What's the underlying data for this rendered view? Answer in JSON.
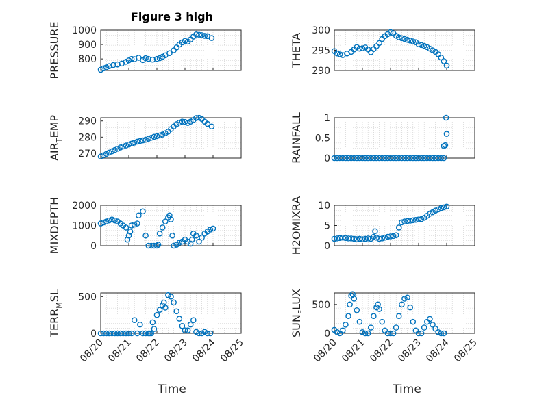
{
  "figure": {
    "title": "Figure 3 high",
    "x_label": "Time",
    "x_tick_labels": [
      "08/20",
      "08/21",
      "08/22",
      "08/23",
      "08/24",
      "08/25"
    ]
  },
  "colors": {
    "marker": "#0072BD",
    "axis": "#262626",
    "grid": "#c8c8c8"
  },
  "chart_data": [
    {
      "type": "scatter",
      "title": "Figure 3 high",
      "ylabel": "PRESSURE",
      "xlabel": "",
      "xlim": [
        0,
        5
      ],
      "ylim": [
        720,
        1000
      ],
      "yticks": [
        800,
        900,
        1000
      ],
      "grid": true,
      "x": [
        0.0,
        0.1,
        0.2,
        0.3,
        0.45,
        0.6,
        0.75,
        0.9,
        1.0,
        1.1,
        1.2,
        1.35,
        1.5,
        1.6,
        1.7,
        1.85,
        2.0,
        2.1,
        2.2,
        2.3,
        2.45,
        2.6,
        2.7,
        2.8,
        2.9,
        3.0,
        3.1,
        3.2,
        3.3,
        3.4,
        3.5,
        3.6,
        3.7,
        3.8,
        3.95
      ],
      "values": [
        725,
        735,
        742,
        750,
        758,
        762,
        768,
        780,
        790,
        800,
        798,
        808,
        792,
        805,
        800,
        795,
        800,
        805,
        815,
        825,
        840,
        860,
        880,
        900,
        915,
        925,
        920,
        935,
        955,
        970,
        968,
        965,
        960,
        958,
        945
      ]
    },
    {
      "type": "scatter",
      "ylabel": "THETA",
      "xlim": [
        0,
        5
      ],
      "ylim": [
        290,
        300
      ],
      "yticks": [
        290,
        295,
        300
      ],
      "grid": true,
      "x": [
        0.0,
        0.1,
        0.2,
        0.3,
        0.45,
        0.6,
        0.7,
        0.8,
        0.9,
        1.0,
        1.1,
        1.2,
        1.3,
        1.4,
        1.5,
        1.6,
        1.7,
        1.8,
        1.9,
        2.0,
        2.1,
        2.2,
        2.3,
        2.4,
        2.5,
        2.6,
        2.7,
        2.8,
        2.9,
        3.0,
        3.1,
        3.2,
        3.3,
        3.4,
        3.5,
        3.6,
        3.7,
        3.8,
        3.9,
        4.0
      ],
      "values": [
        294.8,
        294.2,
        294.0,
        293.8,
        294.2,
        294.6,
        295.2,
        295.8,
        295.4,
        295.5,
        295.7,
        295.2,
        294.5,
        295.3,
        296.0,
        296.8,
        297.8,
        298.5,
        299.0,
        299.5,
        299.2,
        298.6,
        298.2,
        298.0,
        297.8,
        297.6,
        297.4,
        297.2,
        297.0,
        296.5,
        296.3,
        296.1,
        295.8,
        295.4,
        295.0,
        294.6,
        294.0,
        293.2,
        292.3,
        291.2
      ]
    },
    {
      "type": "scatter",
      "ylabel": "AIR",
      "ylabel_sub": "T",
      "ylabel_tail": "EMP",
      "xlim": [
        0,
        5
      ],
      "ylim": [
        267,
        292
      ],
      "yticks": [
        270,
        280,
        290
      ],
      "grid": true,
      "x": [
        0.0,
        0.1,
        0.2,
        0.3,
        0.4,
        0.5,
        0.6,
        0.7,
        0.8,
        0.9,
        1.0,
        1.1,
        1.2,
        1.3,
        1.4,
        1.5,
        1.6,
        1.7,
        1.8,
        1.9,
        2.0,
        2.1,
        2.2,
        2.3,
        2.4,
        2.5,
        2.6,
        2.7,
        2.8,
        2.9,
        3.0,
        3.1,
        3.2,
        3.3,
        3.4,
        3.5,
        3.6,
        3.7,
        3.8,
        3.95
      ],
      "values": [
        268,
        268.8,
        269.6,
        270.4,
        271.2,
        272,
        272.8,
        273.6,
        274.2,
        274.8,
        275.4,
        276,
        276.6,
        277.2,
        277.6,
        278,
        278.4,
        279,
        279.6,
        280.2,
        280.6,
        281,
        281.6,
        282.4,
        283.4,
        285,
        286.6,
        288,
        289,
        289.6,
        289.4,
        288.8,
        289.6,
        290.6,
        291.8,
        292,
        291.2,
        289.6,
        288.2,
        286.6
      ]
    },
    {
      "type": "scatter",
      "ylabel": "RAINFALL",
      "xlim": [
        0,
        5
      ],
      "ylim": [
        0,
        1
      ],
      "yticks": [
        0,
        0.5,
        1
      ],
      "ytick_labels": [
        "0",
        "0.5",
        "1"
      ],
      "grid": true,
      "x": [
        0.0,
        0.1,
        0.2,
        0.3,
        0.4,
        0.5,
        0.6,
        0.7,
        0.8,
        0.9,
        1.0,
        1.1,
        1.2,
        1.3,
        1.4,
        1.5,
        1.6,
        1.7,
        1.8,
        1.9,
        2.0,
        2.1,
        2.2,
        2.3,
        2.4,
        2.5,
        2.6,
        2.7,
        2.8,
        2.9,
        3.0,
        3.1,
        3.2,
        3.3,
        3.4,
        3.5,
        3.6,
        3.7,
        3.8,
        3.9,
        3.9,
        3.95,
        3.98,
        4.0
      ],
      "values": [
        0,
        0,
        0,
        0,
        0,
        0,
        0,
        0,
        0,
        0,
        0,
        0,
        0,
        0,
        0,
        0,
        0,
        0,
        0,
        0,
        0,
        0,
        0,
        0,
        0,
        0,
        0,
        0,
        0,
        0,
        0,
        0,
        0,
        0,
        0,
        0,
        0,
        0,
        0,
        0,
        0.3,
        0.32,
        1.0,
        0.6
      ]
    },
    {
      "type": "scatter",
      "ylabel": "MIXDEPTH",
      "xlim": [
        0,
        5
      ],
      "ylim": [
        0,
        2000
      ],
      "yticks": [
        0,
        1000,
        2000
      ],
      "grid": true,
      "x": [
        0.0,
        0.1,
        0.2,
        0.3,
        0.4,
        0.5,
        0.6,
        0.7,
        0.8,
        0.9,
        0.95,
        1.0,
        1.05,
        1.1,
        1.2,
        1.3,
        1.35,
        1.5,
        1.6,
        1.7,
        1.8,
        1.9,
        2.0,
        2.05,
        2.1,
        2.2,
        2.3,
        2.4,
        2.45,
        2.5,
        2.55,
        2.6,
        2.7,
        2.8,
        2.9,
        3.0,
        3.1,
        3.2,
        3.25,
        3.3,
        3.4,
        3.5,
        3.6,
        3.7,
        3.8,
        3.9,
        4.0
      ],
      "values": [
        1100,
        1150,
        1200,
        1250,
        1300,
        1250,
        1200,
        1100,
        1000,
        900,
        300,
        500,
        700,
        1000,
        1050,
        1100,
        1500,
        1700,
        500,
        0,
        0,
        0,
        0,
        50,
        600,
        900,
        1200,
        1400,
        1500,
        1300,
        500,
        0,
        50,
        150,
        200,
        300,
        200,
        100,
        300,
        600,
        500,
        200,
        400,
        600,
        700,
        800,
        850
      ]
    },
    {
      "type": "scatter",
      "ylabel": "H2OMIXRA",
      "xlim": [
        0,
        5
      ],
      "ylim": [
        0,
        10
      ],
      "yticks": [
        0,
        5,
        10
      ],
      "grid": true,
      "x": [
        0.0,
        0.1,
        0.2,
        0.3,
        0.4,
        0.5,
        0.6,
        0.7,
        0.8,
        0.9,
        1.0,
        1.1,
        1.2,
        1.3,
        1.4,
        1.45,
        1.5,
        1.6,
        1.7,
        1.8,
        1.9,
        2.0,
        2.1,
        2.2,
        2.3,
        2.4,
        2.5,
        2.6,
        2.7,
        2.8,
        2.9,
        3.0,
        3.1,
        3.2,
        3.3,
        3.4,
        3.5,
        3.6,
        3.7,
        3.8,
        3.9,
        4.0
      ],
      "values": [
        1.7,
        1.8,
        1.9,
        2.0,
        1.9,
        1.8,
        1.8,
        1.7,
        1.6,
        1.7,
        1.6,
        1.7,
        1.8,
        1.7,
        2.2,
        3.6,
        2.0,
        1.7,
        1.8,
        2.0,
        2.2,
        2.3,
        2.4,
        2.6,
        4.5,
        5.8,
        6.0,
        6.1,
        6.2,
        6.3,
        6.4,
        6.5,
        6.6,
        6.9,
        7.4,
        7.9,
        8.3,
        8.7,
        9.0,
        9.3,
        9.5,
        9.7
      ]
    },
    {
      "type": "scatter",
      "ylabel": "TERR",
      "ylabel_sub": "M",
      "ylabel_tail": "SL",
      "xlim": [
        0,
        5
      ],
      "ylim": [
        0,
        550
      ],
      "yticks": [
        0,
        500
      ],
      "grid": true,
      "x": [
        0.0,
        0.1,
        0.2,
        0.3,
        0.4,
        0.5,
        0.6,
        0.7,
        0.8,
        0.9,
        1.0,
        1.1,
        1.2,
        1.3,
        1.4,
        1.5,
        1.6,
        1.7,
        1.75,
        1.8,
        1.85,
        1.9,
        2.0,
        2.1,
        2.2,
        2.25,
        2.3,
        2.4,
        2.5,
        2.6,
        2.7,
        2.8,
        2.9,
        3.0,
        3.1,
        3.2,
        3.3,
        3.4,
        3.5,
        3.6,
        3.7,
        3.8,
        3.9
      ],
      "values": [
        0,
        0,
        0,
        0,
        0,
        0,
        0,
        0,
        0,
        0,
        0,
        0,
        180,
        0,
        120,
        0,
        0,
        0,
        0,
        0,
        150,
        60,
        250,
        320,
        380,
        420,
        350,
        520,
        500,
        420,
        300,
        200,
        100,
        40,
        40,
        120,
        180,
        20,
        0,
        0,
        20,
        0,
        0
      ]
    },
    {
      "type": "scatter",
      "ylabel": "SUN",
      "ylabel_sub": "F",
      "ylabel_tail": "LUX",
      "xlim": [
        0,
        5
      ],
      "ylim": [
        0,
        700
      ],
      "yticks": [
        0,
        500
      ],
      "grid": true,
      "x": [
        0.0,
        0.1,
        0.2,
        0.3,
        0.4,
        0.5,
        0.55,
        0.6,
        0.65,
        0.7,
        0.8,
        0.9,
        1.0,
        1.1,
        1.2,
        1.3,
        1.4,
        1.5,
        1.55,
        1.6,
        1.7,
        1.8,
        1.9,
        2.0,
        2.1,
        2.2,
        2.3,
        2.4,
        2.5,
        2.6,
        2.7,
        2.8,
        2.9,
        3.0,
        3.1,
        3.2,
        3.3,
        3.4,
        3.5,
        3.6,
        3.7,
        3.8,
        3.9
      ],
      "values": [
        60,
        20,
        0,
        50,
        150,
        300,
        500,
        650,
        680,
        600,
        400,
        200,
        20,
        0,
        0,
        100,
        300,
        450,
        500,
        420,
        200,
        50,
        0,
        0,
        0,
        100,
        300,
        500,
        600,
        620,
        450,
        200,
        50,
        0,
        0,
        100,
        200,
        250,
        150,
        80,
        20,
        0,
        0
      ]
    }
  ]
}
